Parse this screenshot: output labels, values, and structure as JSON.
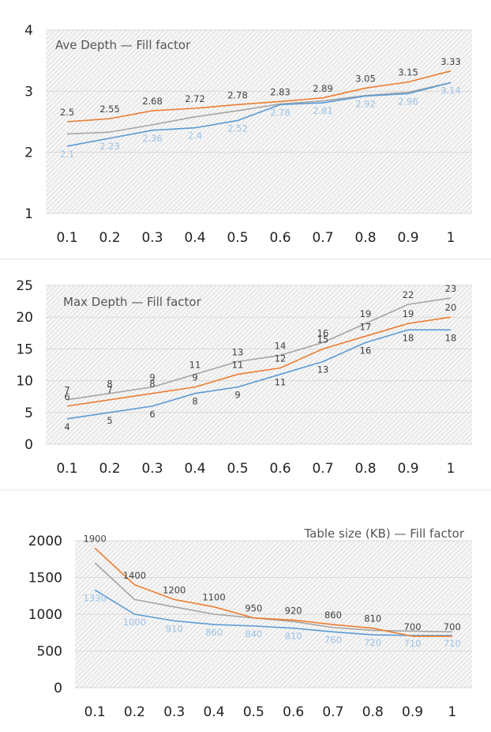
{
  "colors": {
    "blue": "#5b9bd5",
    "orange": "#ed7d31",
    "gray": "#a5a5a5"
  },
  "chart_data": [
    {
      "type": "line",
      "title": "Ave Depth — Fill factor",
      "categories": [
        "0.1",
        "0.2",
        "0.3",
        "0.4",
        "0.5",
        "0.6",
        "0.7",
        "0.8",
        "0.9",
        "1"
      ],
      "ylim": [
        1,
        4
      ],
      "yticks": [
        "1",
        "2",
        "3",
        "4"
      ],
      "grid": true,
      "series": [
        {
          "color": "#a5a5a5",
          "values": [
            2.3,
            2.33,
            2.45,
            2.58,
            2.68,
            2.79,
            2.84,
            2.93,
            2.98,
            3.14
          ],
          "labels": []
        },
        {
          "color": "#5b9bd5",
          "values": [
            2.1,
            2.23,
            2.36,
            2.4,
            2.52,
            2.78,
            2.81,
            2.92,
            2.96,
            3.14
          ],
          "labels": [
            "2.1",
            "2.23",
            "2.36",
            "2.4",
            "2.52",
            "2.78",
            "2.81",
            "2.92",
            "2.96",
            "3.14"
          ]
        },
        {
          "color": "#ed7d31",
          "values": [
            2.5,
            2.55,
            2.68,
            2.72,
            2.78,
            2.83,
            2.89,
            3.05,
            3.15,
            3.33
          ],
          "labels": [
            "2.5",
            "2.55",
            "2.68",
            "2.72",
            "2.78",
            "2.83",
            "2.89",
            "3.05",
            "3.15",
            "3.33"
          ]
        }
      ]
    },
    {
      "type": "line",
      "title": "Max Depth — Fill factor",
      "categories": [
        "0.1",
        "0.2",
        "0.3",
        "0.4",
        "0.5",
        "0.6",
        "0.7",
        "0.8",
        "0.9",
        "1"
      ],
      "ylim": [
        0,
        25
      ],
      "yticks": [
        "0",
        "5",
        "10",
        "15",
        "20",
        "25"
      ],
      "grid": true,
      "series": [
        {
          "color": "#a5a5a5",
          "values": [
            7,
            8,
            9,
            11,
            13,
            14,
            16,
            19,
            22,
            23
          ],
          "labels": [
            "7",
            "8",
            "9",
            "11",
            "13",
            "14",
            "16",
            "19",
            "22",
            "23"
          ]
        },
        {
          "color": "#ed7d31",
          "values": [
            6,
            7,
            8,
            9,
            11,
            12,
            15,
            17,
            19,
            20
          ],
          "labels": [
            "6",
            "7",
            "8",
            "9",
            "11",
            "12",
            "15",
            "17",
            "19",
            "20"
          ]
        },
        {
          "color": "#5b9bd5",
          "values": [
            4,
            5,
            6,
            8,
            9,
            11,
            13,
            16,
            18,
            18
          ],
          "labels": [
            "4",
            "5",
            "6",
            "8",
            "9",
            "11",
            "13",
            "16",
            "18",
            "18"
          ]
        }
      ]
    },
    {
      "type": "line",
      "title": "Table size (KB) — Fill factor",
      "categories": [
        "0.1",
        "0.2",
        "0.3",
        "0.4",
        "0.5",
        "0.6",
        "0.7",
        "0.8",
        "0.9",
        "1"
      ],
      "ylim": [
        0,
        2000
      ],
      "yticks": [
        "0",
        "500",
        "1000",
        "1500",
        "2000"
      ],
      "grid": true,
      "series": [
        {
          "color": "#a5a5a5",
          "values": [
            1700,
            1200,
            1100,
            1000,
            950,
            900,
            820,
            780,
            770,
            760
          ],
          "labels": []
        },
        {
          "color": "#5b9bd5",
          "values": [
            1330,
            1000,
            910,
            860,
            840,
            810,
            760,
            720,
            710,
            710
          ],
          "labels": [
            "1330",
            "1000",
            "910",
            "860",
            "840",
            "810",
            "760",
            "720",
            "710",
            "710"
          ]
        },
        {
          "color": "#ed7d31",
          "values": [
            1900,
            1400,
            1200,
            1100,
            950,
            920,
            860,
            810,
            700,
            700
          ],
          "labels": [
            "1900",
            "1400",
            "1200",
            "1100",
            "950",
            "920",
            "860",
            "810",
            "700",
            "700"
          ]
        }
      ]
    }
  ]
}
